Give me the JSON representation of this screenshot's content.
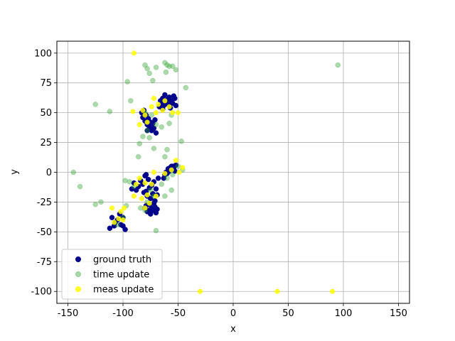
{
  "chart_data": {
    "type": "scatter",
    "xlabel": "x",
    "ylabel": "y",
    "xlim": [
      -160,
      160
    ],
    "ylim": [
      -110,
      110
    ],
    "xticks": [
      -150,
      -100,
      -50,
      0,
      50,
      100,
      150
    ],
    "yticks": [
      -100,
      -75,
      -50,
      -25,
      0,
      25,
      50,
      75,
      100
    ],
    "grid": true,
    "legend_position": "lower-left",
    "series": [
      {
        "name": "ground truth",
        "color": "#00008b",
        "points": [
          [
            -112,
            -47
          ],
          [
            -110,
            -38
          ],
          [
            -108,
            -45
          ],
          [
            -105,
            -40
          ],
          [
            -103,
            -35
          ],
          [
            -102,
            -44
          ],
          [
            -100,
            -38
          ],
          [
            -98,
            -48
          ],
          [
            -107,
            -42
          ],
          [
            -100,
            -45
          ],
          [
            -92,
            -14
          ],
          [
            -90,
            -9
          ],
          [
            -88,
            -15
          ],
          [
            -86,
            -12
          ],
          [
            -84,
            -7
          ],
          [
            -82,
            -10
          ],
          [
            -80,
            -3
          ],
          [
            -79,
            -16
          ],
          [
            -78,
            -20
          ],
          [
            -77,
            -6
          ],
          [
            -76,
            -13
          ],
          [
            -75,
            -22
          ],
          [
            -74,
            -11
          ],
          [
            -73,
            -18
          ],
          [
            -72,
            -8
          ],
          [
            -71,
            -24
          ],
          [
            -70,
            -14
          ],
          [
            -69,
            -19
          ],
          [
            -68,
            -5
          ],
          [
            -81,
            -17
          ],
          [
            -79,
            -2
          ],
          [
            -80,
            -30
          ],
          [
            -79,
            -28
          ],
          [
            -78,
            -33
          ],
          [
            -76,
            -27
          ],
          [
            -75,
            -35
          ],
          [
            -74,
            -30
          ],
          [
            -73,
            -32
          ],
          [
            -72,
            -26
          ],
          [
            -71,
            -29
          ],
          [
            -70,
            -34
          ],
          [
            -69,
            -31
          ],
          [
            -77,
            -32
          ],
          [
            -63,
            -5
          ],
          [
            -62,
            -2
          ],
          [
            -61,
            0
          ],
          [
            -60,
            -1
          ],
          [
            -59,
            3
          ],
          [
            -58,
            1
          ],
          [
            -57,
            4
          ],
          [
            -56,
            2
          ],
          [
            -55,
            5
          ],
          [
            -54,
            3
          ],
          [
            -53,
            1
          ],
          [
            -52,
            6
          ],
          [
            -56,
            5
          ],
          [
            -83,
            50
          ],
          [
            -82,
            46
          ],
          [
            -81,
            52
          ],
          [
            -80,
            43
          ],
          [
            -79,
            48
          ],
          [
            -78,
            40
          ],
          [
            -77,
            45
          ],
          [
            -76,
            38
          ],
          [
            -75,
            42
          ],
          [
            -74,
            35
          ],
          [
            -73,
            41
          ],
          [
            -72,
            37
          ],
          [
            -71,
            44
          ],
          [
            -70,
            33
          ],
          [
            -78,
            35
          ],
          [
            -67,
            55
          ],
          [
            -66,
            60
          ],
          [
            -65,
            58
          ],
          [
            -64,
            62
          ],
          [
            -63,
            56
          ],
          [
            -62,
            65
          ],
          [
            -61,
            59
          ],
          [
            -60,
            61
          ],
          [
            -59,
            57
          ],
          [
            -58,
            63
          ],
          [
            -57,
            54
          ],
          [
            -56,
            60
          ],
          [
            -55,
            58
          ],
          [
            -54,
            64
          ],
          [
            -53,
            62
          ],
          [
            -52,
            56
          ],
          [
            -64,
            53
          ]
        ]
      },
      {
        "name": "time update",
        "color": "#2ca02c",
        "points": [
          [
            -80,
            90
          ],
          [
            -78,
            87
          ],
          [
            -76,
            83
          ],
          [
            -73,
            77
          ],
          [
            -70,
            88
          ],
          [
            -62,
            92
          ],
          [
            -60,
            90
          ],
          [
            -58,
            89
          ],
          [
            -55,
            89
          ],
          [
            -61,
            84
          ],
          [
            -52,
            86
          ],
          [
            -96,
            76
          ],
          [
            -43,
            71
          ],
          [
            -125,
            57
          ],
          [
            -112,
            51
          ],
          [
            -93,
            60
          ],
          [
            -98,
            -7
          ],
          [
            -94,
            -8
          ],
          [
            -90,
            -12
          ],
          [
            -86,
            13
          ],
          [
            -85,
            24
          ],
          [
            -82,
            30
          ],
          [
            -80,
            50
          ],
          [
            -78,
            35
          ],
          [
            -76,
            29
          ],
          [
            -74,
            48
          ],
          [
            -72,
            20
          ],
          [
            -70,
            40
          ],
          [
            -65,
            38
          ],
          [
            -62,
            13
          ],
          [
            -60,
            19
          ],
          [
            -58,
            41
          ],
          [
            -56,
            48
          ],
          [
            -47,
            26
          ],
          [
            -145,
            0
          ],
          [
            -139,
            -12
          ],
          [
            -125,
            -27
          ],
          [
            -120,
            -25
          ],
          [
            -105,
            -44
          ],
          [
            -100,
            -38
          ],
          [
            -97,
            -28
          ],
          [
            -84,
            -30
          ],
          [
            -78,
            -25
          ],
          [
            -75,
            -15
          ],
          [
            -70,
            -49
          ],
          [
            -65,
            -10
          ],
          [
            -62,
            -20
          ],
          [
            -60,
            -5
          ],
          [
            -56,
            -15
          ],
          [
            -50,
            5
          ],
          [
            -55,
            -2
          ],
          [
            -46,
            2
          ],
          [
            -80,
            -32
          ],
          [
            -72,
            -20
          ],
          [
            95,
            90
          ]
        ]
      },
      {
        "name": "meas update",
        "color": "#ffff00",
        "points": [
          [
            -90,
            100
          ],
          [
            -110,
            -30
          ],
          [
            -108,
            -42
          ],
          [
            -104,
            -39
          ],
          [
            -102,
            -33
          ],
          [
            -100,
            -40
          ],
          [
            -99,
            -30
          ],
          [
            -90,
            -20
          ],
          [
            -88,
            -10
          ],
          [
            -85,
            -5
          ],
          [
            -83,
            -22
          ],
          [
            -80,
            -30
          ],
          [
            -80,
            -9
          ],
          [
            -78,
            -19
          ],
          [
            -76,
            -26
          ],
          [
            -74,
            -10
          ],
          [
            -72,
            0
          ],
          [
            -70,
            -20
          ],
          [
            -91,
            51
          ],
          [
            -85,
            40
          ],
          [
            -82,
            52
          ],
          [
            -80,
            48
          ],
          [
            -78,
            42
          ],
          [
            -74,
            55
          ],
          [
            -72,
            62
          ],
          [
            -70,
            50
          ],
          [
            -68,
            57
          ],
          [
            -64,
            52
          ],
          [
            -62,
            60
          ],
          [
            -58,
            55
          ],
          [
            -55,
            50
          ],
          [
            -50,
            50
          ],
          [
            -62,
            -1
          ],
          [
            -56,
            2
          ],
          [
            -52,
            10
          ],
          [
            -49,
            0
          ],
          [
            -46,
            4
          ],
          [
            -30,
            -100
          ],
          [
            40,
            -100
          ],
          [
            90,
            -100
          ]
        ]
      }
    ]
  }
}
